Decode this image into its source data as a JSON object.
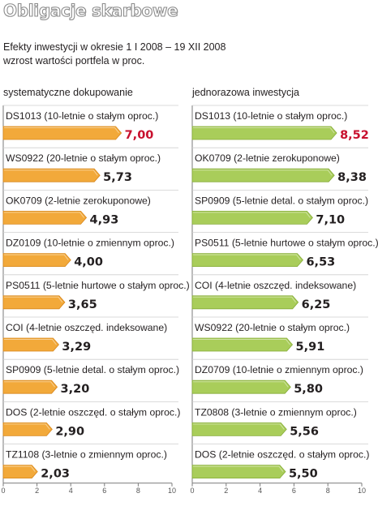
{
  "header": {
    "title": "Obligacje skarbowe",
    "subtitle_line1": "Efekty inwestycji w okresie 1 I 2008 – 19 XII 2008",
    "subtitle_line2": "wzrost wartości portfela w proc."
  },
  "colors": {
    "left_bar": "#f2a93a",
    "left_bar_dark": "#d8871c",
    "right_bar": "#a9cd5a",
    "right_bar_dark": "#86ac39",
    "highlight": "#c8102e",
    "axis": "#7a7a7a"
  },
  "chart_data": [
    {
      "type": "bar",
      "orientation": "horizontal",
      "title": "systematyczne dokupowanie",
      "categories": [
        "DS1013 (10-letnie o stałym oproc.)",
        "WS0922 (20-letnie o stałym oproc.)",
        "OK0709 (2-letnie zerokuponowe)",
        "DZ0109 (10-letnie o zmiennym oproc.)",
        "PS0511 (5-letnie hurtowe o stałym oproc.)",
        "COI (4-letnie oszczęd. indeksowane)",
        "SP0909 (5-letnie detal. o stałym oproc.)",
        "DOS (2-letnie oszczęd. o stałym oproc.)",
        "TZ1108 (3-letnie o zmiennym oproc.)"
      ],
      "values": [
        7.0,
        5.73,
        4.93,
        4.0,
        3.65,
        3.29,
        3.2,
        2.9,
        2.03
      ],
      "value_labels": [
        "7,00",
        "5,73",
        "4,93",
        "4,00",
        "3,65",
        "3,29",
        "3,20",
        "2,90",
        "2,03"
      ],
      "highlight_index": 0,
      "xlim": [
        0,
        10
      ],
      "xticks": [
        "0",
        "2",
        "4",
        "6",
        "8",
        "10"
      ]
    },
    {
      "type": "bar",
      "orientation": "horizontal",
      "title": "jednorazowa inwestycja",
      "categories": [
        "DS1013 (10-letnie o stałym oproc.)",
        "OK0709 (2-letnie zerokuponowe)",
        "SP0909 (5-letnie detal. o stałym oproc.)",
        "PS0511 (5-letnie hurtowe o stałym oproc.)",
        "COI (4-letnie oszczęd. indeksowane)",
        "WS0922 (20-letnie o stałym oproc.)",
        "DZ0709 (10-letnie o zmiennym oproc.)",
        "TZ0808 (3-letnie o zmiennym oproc.)",
        "DOS (2-letnie oszczęd. o stałym oproc.)"
      ],
      "values": [
        8.52,
        8.38,
        7.1,
        6.53,
        6.25,
        5.91,
        5.8,
        5.56,
        5.5
      ],
      "value_labels": [
        "8,52",
        "8,38",
        "7,10",
        "6,53",
        "6,25",
        "5,91",
        "5,80",
        "5,56",
        "5,50"
      ],
      "highlight_index": 0,
      "xlim": [
        0,
        10
      ],
      "xticks": [
        "0",
        "2",
        "4",
        "6",
        "8",
        "10"
      ]
    }
  ]
}
